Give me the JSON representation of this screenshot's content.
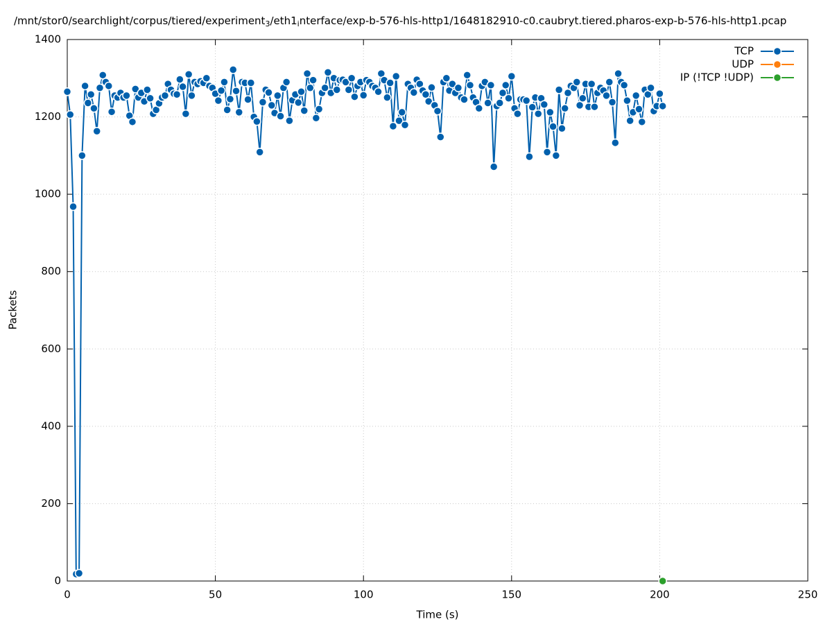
{
  "chart_data": {
    "type": "linespoints",
    "title": [
      "/mnt/stor0/searchlight/corpus/tiered/experiment",
      "3",
      "/eth1",
      "i",
      "nterface/exp-b-576-hls-http1/1648182910-c0.caubryt.tiered.pharos-exp-b-576-hls-http1.pcap"
    ],
    "xlabel": "Time (s)",
    "ylabel": "Packets",
    "xlim": [
      0,
      250
    ],
    "xticks": [
      0,
      50,
      100,
      150,
      200,
      250
    ],
    "ylim": [
      0,
      1400
    ],
    "yticks": [
      0,
      200,
      400,
      600,
      800,
      1000,
      1200,
      1400
    ],
    "grid": true,
    "legend": "top-right",
    "series": [
      {
        "name": "TCP",
        "color": "#0060ad",
        "x": [
          0,
          1,
          2,
          3,
          4,
          5,
          6,
          7,
          8,
          9,
          10,
          11,
          12,
          13,
          14,
          15,
          16,
          17,
          18,
          19,
          20,
          21,
          22,
          23,
          24,
          25,
          26,
          27,
          28,
          29,
          30,
          31,
          32,
          33,
          34,
          35,
          36,
          37,
          38,
          39,
          40,
          41,
          42,
          43,
          44,
          45,
          46,
          47,
          48,
          49,
          50,
          51,
          52,
          53,
          54,
          55,
          56,
          57,
          58,
          59,
          60,
          61,
          62,
          63,
          64,
          65,
          66,
          67,
          68,
          69,
          70,
          71,
          72,
          73,
          74,
          75,
          76,
          77,
          78,
          79,
          80,
          81,
          82,
          83,
          84,
          85,
          86,
          87,
          88,
          89,
          90,
          91,
          92,
          93,
          94,
          95,
          96,
          97,
          98,
          99,
          100,
          101,
          102,
          103,
          104,
          105,
          106,
          107,
          108,
          109,
          110,
          111,
          112,
          113,
          114,
          115,
          116,
          117,
          118,
          119,
          120,
          121,
          122,
          123,
          124,
          125,
          126,
          127,
          128,
          129,
          130,
          131,
          132,
          133,
          134,
          135,
          136,
          137,
          138,
          139,
          140,
          141,
          142,
          143,
          144,
          145,
          146,
          147,
          148,
          149,
          150,
          151,
          152,
          153,
          154,
          155,
          156,
          157,
          158,
          159,
          160,
          161,
          162,
          163,
          164,
          165,
          166,
          167,
          168,
          169,
          170,
          171,
          172,
          173,
          174,
          175,
          176,
          177,
          178,
          179,
          180,
          181,
          182,
          183,
          184,
          185,
          186,
          187,
          188,
          189,
          190,
          191,
          192,
          193,
          194,
          195,
          196,
          197,
          198,
          199,
          200,
          201
        ],
        "values": [
          1265,
          1206,
          968,
          18,
          20,
          1100,
          1280,
          1236,
          1258,
          1222,
          1163,
          1275,
          1308,
          1290,
          1280,
          1213,
          1255,
          1250,
          1262,
          1250,
          1255,
          1203,
          1187,
          1272,
          1250,
          1262,
          1240,
          1270,
          1248,
          1208,
          1218,
          1235,
          1250,
          1255,
          1285,
          1270,
          1260,
          1258,
          1297,
          1278,
          1208,
          1310,
          1255,
          1290,
          1285,
          1292,
          1288,
          1300,
          1280,
          1275,
          1260,
          1242,
          1268,
          1290,
          1218,
          1246,
          1322,
          1267,
          1212,
          1290,
          1288,
          1245,
          1288,
          1200,
          1188,
          1109,
          1238,
          1270,
          1263,
          1230,
          1210,
          1255,
          1202,
          1275,
          1290,
          1190,
          1243,
          1258,
          1237,
          1265,
          1216,
          1312,
          1275,
          1295,
          1197,
          1220,
          1262,
          1275,
          1315,
          1262,
          1300,
          1270,
          1295,
          1296,
          1290,
          1270,
          1300,
          1252,
          1280,
          1290,
          1256,
          1295,
          1290,
          1280,
          1275,
          1265,
          1312,
          1295,
          1250,
          1288,
          1176,
          1305,
          1190,
          1212,
          1179,
          1285,
          1275,
          1263,
          1296,
          1285,
          1268,
          1258,
          1240,
          1276,
          1230,
          1215,
          1148,
          1290,
          1300,
          1268,
          1285,
          1262,
          1275,
          1250,
          1245,
          1308,
          1282,
          1250,
          1238,
          1222,
          1280,
          1290,
          1236,
          1282,
          1071,
          1228,
          1236,
          1262,
          1282,
          1248,
          1305,
          1222,
          1208,
          1245,
          1245,
          1242,
          1097,
          1225,
          1250,
          1208,
          1248,
          1232,
          1109,
          1212,
          1175,
          1100,
          1270,
          1170,
          1222,
          1262,
          1280,
          1275,
          1290,
          1230,
          1248,
          1285,
          1226,
          1285,
          1226,
          1262,
          1275,
          1268,
          1255,
          1290,
          1238,
          1133,
          1312,
          1290,
          1282,
          1242,
          1190,
          1212,
          1255,
          1220,
          1187,
          1270,
          1258,
          1275,
          1215,
          1228,
          1260,
          1228
        ]
      },
      {
        "name": "UDP",
        "color": "#ff7f0e",
        "x": [],
        "values": []
      },
      {
        "name": "IP (!TCP  !UDP)",
        "color": "#2ca02c",
        "x": [
          201
        ],
        "values": [
          0
        ]
      }
    ]
  }
}
